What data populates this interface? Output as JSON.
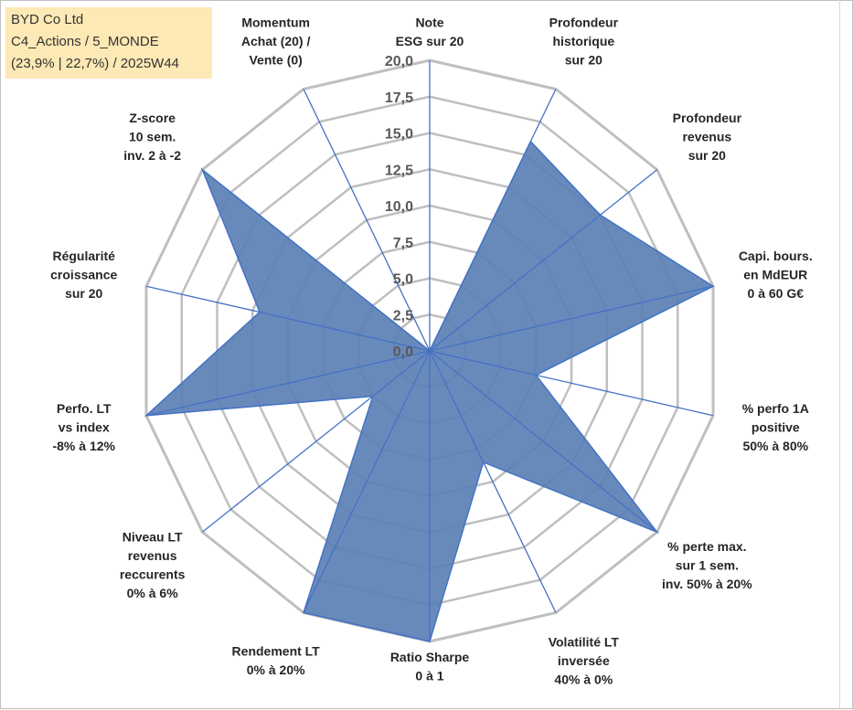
{
  "info_box": {
    "line1": "BYD Co Ltd",
    "line2": "C4_Actions / 5_MONDE",
    "line3": "(23,9% | 22,7%) / 2025W44"
  },
  "chart_data": {
    "type": "radar",
    "title": "",
    "rlim": [
      0,
      20
    ],
    "ticks": [
      "0,0",
      "2,5",
      "5,0",
      "7,5",
      "10,0",
      "12,5",
      "15,0",
      "17,5",
      "20,0"
    ],
    "axes": [
      {
        "label": [
          "Note",
          "ESG sur 20"
        ],
        "value": 0
      },
      {
        "label": [
          "Profondeur",
          "historique",
          "sur 20"
        ],
        "value": 16
      },
      {
        "label": [
          "Profondeur",
          "revenus",
          "sur 20"
        ],
        "value": 15
      },
      {
        "label": [
          "Capi. bours.",
          "en MdEUR",
          "0 à 60 G€"
        ],
        "value": 20
      },
      {
        "label": [
          "% perfo 1A",
          "positive",
          "50% à 80%"
        ],
        "value": 7.5
      },
      {
        "label": [
          "% perte max.",
          "sur 1 sem.",
          "inv. 50% à 20%"
        ],
        "value": 20
      },
      {
        "label": [
          "Volatilité LT",
          "inversée",
          "40% à 0%"
        ],
        "value": 8.5
      },
      {
        "label": [
          "Ratio Sharpe",
          "0 à 1"
        ],
        "value": 20
      },
      {
        "label": [
          "Rendement LT",
          "0% à 20%"
        ],
        "value": 20
      },
      {
        "label": [
          "Niveau LT",
          "revenus",
          "reccurents",
          "0% à 6%"
        ],
        "value": 5
      },
      {
        "label": [
          "Perfo. LT",
          "vs index",
          "-8% à 12%"
        ],
        "value": 20
      },
      {
        "label": [
          "Régularité",
          "croissance",
          "sur 20"
        ],
        "value": 12
      },
      {
        "label": [
          "Z-score",
          "10 sem.",
          "inv. 2 à -2"
        ],
        "value": 20
      },
      {
        "label": [
          "Momentum",
          "Achat (20) /",
          "Vente (0)"
        ],
        "value": 0
      }
    ],
    "colors": {
      "fill": "#5b80b5",
      "stroke": "#4472c4",
      "grid": "#bfbfbf",
      "spoke": "#4472c4"
    }
  }
}
